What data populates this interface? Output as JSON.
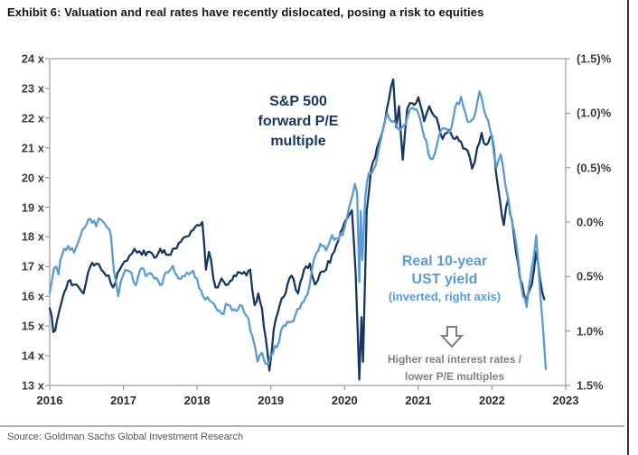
{
  "title": "Exhibit 6: Valuation and real rates have recently dislocated, posing a risk to equities",
  "source": "Source: Goldman Sachs Global Investment Research",
  "annotations": {
    "pe_label_lines": [
      "S&P 500",
      "forward P/E",
      "multiple"
    ],
    "yield_label_lines": [
      "Real 10-year",
      "UST yield"
    ],
    "yield_label_sub": "(inverted, right axis)",
    "note_lines": [
      "Higher real interest rates /",
      "lower P/E multiples"
    ]
  },
  "colors": {
    "pe_line": "#17375e",
    "yield_line": "#5b9bd5",
    "axis": "#9b9b9b",
    "note_gray": "#808080"
  },
  "chart_data": {
    "type": "line",
    "title": "Exhibit 6: Valuation and real rates have recently dislocated, posing a risk to equities",
    "grid": false,
    "x_range": [
      2016,
      2023
    ],
    "x_tick_labels": [
      "2016",
      "2017",
      "2018",
      "2019",
      "2020",
      "2021",
      "2022",
      "2023"
    ],
    "left_axis": {
      "label": "S&P 500 forward P/E multiple",
      "tick_labels": [
        "24 x",
        "23 x",
        "22 x",
        "21 x",
        "20 x",
        "19 x",
        "18 x",
        "17 x",
        "16 x",
        "15 x",
        "14 x",
        "13 x"
      ],
      "range": [
        13,
        24
      ]
    },
    "right_axis": {
      "label": "Real 10-year UST yield (inverted, right axis)",
      "inverted": true,
      "tick_labels": [
        "(1.5)%",
        "(1.0)%",
        "(0.5)%",
        "0.0%",
        "0.5%",
        "1.0%",
        "1.5%"
      ],
      "range_top_to_bottom": [
        -1.5,
        1.5
      ]
    },
    "series": [
      {
        "name": "S&P 500 forward P/E multiple",
        "axis": "left",
        "color": "#17375e",
        "x": [
          2016.0,
          2016.05,
          2016.1,
          2016.17,
          2016.25,
          2016.33,
          2016.46,
          2016.55,
          2016.63,
          2016.7,
          2016.8,
          2016.86,
          2016.95,
          2017.05,
          2017.15,
          2017.25,
          2017.33,
          2017.42,
          2017.5,
          2017.58,
          2017.67,
          2017.75,
          2017.83,
          2017.92,
          2018.0,
          2018.07,
          2018.12,
          2018.16,
          2018.22,
          2018.28,
          2018.33,
          2018.42,
          2018.5,
          2018.58,
          2018.67,
          2018.72,
          2018.78,
          2018.83,
          2018.88,
          2018.93,
          2018.98,
          2019.04,
          2019.12,
          2019.2,
          2019.28,
          2019.37,
          2019.45,
          2019.53,
          2019.6,
          2019.67,
          2019.75,
          2019.83,
          2019.92,
          2020.0,
          2020.1,
          2020.15,
          2020.2,
          2020.23,
          2020.25,
          2020.3,
          2020.36,
          2020.44,
          2020.52,
          2020.6,
          2020.66,
          2020.7,
          2020.74,
          2020.79,
          2020.85,
          2020.92,
          2021.0,
          2021.08,
          2021.15,
          2021.25,
          2021.33,
          2021.42,
          2021.5,
          2021.58,
          2021.67,
          2021.73,
          2021.8,
          2021.86,
          2021.92,
          2022.0,
          2022.08,
          2022.16,
          2022.22,
          2022.3,
          2022.38,
          2022.46,
          2022.54,
          2022.6,
          2022.65,
          2022.71
        ],
        "y": [
          15.6,
          14.8,
          15.2,
          15.9,
          16.5,
          16.4,
          16.1,
          17.0,
          17.1,
          16.9,
          16.7,
          16.3,
          16.9,
          17.2,
          17.6,
          17.4,
          17.5,
          17.3,
          17.6,
          17.4,
          17.6,
          17.8,
          18.0,
          18.2,
          18.4,
          18.5,
          16.9,
          17.5,
          16.6,
          16.3,
          16.6,
          16.4,
          16.7,
          16.8,
          16.7,
          16.9,
          15.7,
          16.1,
          15.6,
          14.6,
          13.5,
          14.9,
          15.7,
          16.1,
          16.7,
          16.1,
          16.9,
          17.1,
          16.4,
          16.8,
          16.9,
          17.4,
          17.9,
          18.5,
          18.9,
          16.8,
          13.2,
          15.3,
          13.8,
          18.9,
          20.3,
          21.0,
          21.6,
          22.6,
          23.3,
          21.7,
          22.4,
          20.6,
          22.3,
          22.5,
          22.7,
          21.9,
          22.4,
          22.0,
          21.3,
          21.6,
          21.3,
          21.2,
          20.9,
          20.3,
          21.0,
          21.5,
          21.1,
          21.4,
          19.7,
          18.4,
          19.3,
          18.0,
          16.6,
          15.8,
          16.4,
          17.5,
          16.6,
          15.9
        ]
      },
      {
        "name": "Real 10-year UST yield",
        "axis": "right",
        "color": "#5b9bd5",
        "x": [
          2016.0,
          2016.06,
          2016.12,
          2016.17,
          2016.25,
          2016.33,
          2016.42,
          2016.5,
          2016.55,
          2016.63,
          2016.7,
          2016.78,
          2016.83,
          2016.87,
          2016.93,
          2017.0,
          2017.08,
          2017.17,
          2017.25,
          2017.33,
          2017.42,
          2017.5,
          2017.58,
          2017.67,
          2017.75,
          2017.83,
          2017.92,
          2018.0,
          2018.08,
          2018.17,
          2018.25,
          2018.33,
          2018.42,
          2018.5,
          2018.58,
          2018.67,
          2018.75,
          2018.82,
          2018.88,
          2018.93,
          2019.0,
          2019.08,
          2019.17,
          2019.25,
          2019.33,
          2019.42,
          2019.5,
          2019.56,
          2019.62,
          2019.67,
          2019.75,
          2019.83,
          2019.92,
          2020.0,
          2020.08,
          2020.14,
          2020.17,
          2020.2,
          2020.22,
          2020.24,
          2020.28,
          2020.33,
          2020.42,
          2020.5,
          2020.58,
          2020.67,
          2020.75,
          2020.83,
          2020.92,
          2021.0,
          2021.08,
          2021.17,
          2021.25,
          2021.33,
          2021.42,
          2021.5,
          2021.58,
          2021.67,
          2021.75,
          2021.83,
          2021.92,
          2022.0,
          2022.06,
          2022.12,
          2022.18,
          2022.25,
          2022.33,
          2022.42,
          2022.47,
          2022.54,
          2022.6,
          2022.65,
          2022.69,
          2022.73
        ],
        "y": [
          0.65,
          0.42,
          0.48,
          0.3,
          0.22,
          0.28,
          0.12,
          0.02,
          -0.03,
          0.04,
          -0.02,
          0.05,
          0.12,
          0.45,
          0.68,
          0.48,
          0.45,
          0.58,
          0.42,
          0.48,
          0.52,
          0.58,
          0.46,
          0.4,
          0.52,
          0.5,
          0.46,
          0.52,
          0.68,
          0.72,
          0.78,
          0.84,
          0.76,
          0.8,
          0.76,
          0.86,
          1.05,
          1.28,
          1.2,
          1.3,
          1.22,
          1.15,
          0.95,
          0.92,
          0.86,
          0.74,
          0.66,
          0.42,
          0.28,
          0.2,
          0.26,
          0.12,
          0.16,
          0.05,
          -0.18,
          -0.35,
          -0.27,
          0.55,
          -0.1,
          0.35,
          -0.22,
          -0.45,
          -0.52,
          -0.78,
          -1.0,
          -0.93,
          -0.84,
          -0.9,
          -1.05,
          -1.0,
          -0.78,
          -0.58,
          -0.7,
          -0.86,
          -0.82,
          -1.05,
          -1.15,
          -0.92,
          -0.95,
          -1.2,
          -0.97,
          -0.78,
          -0.5,
          -0.62,
          -0.35,
          -0.08,
          0.2,
          0.68,
          0.78,
          0.42,
          0.12,
          0.62,
          0.95,
          1.35
        ]
      }
    ]
  }
}
